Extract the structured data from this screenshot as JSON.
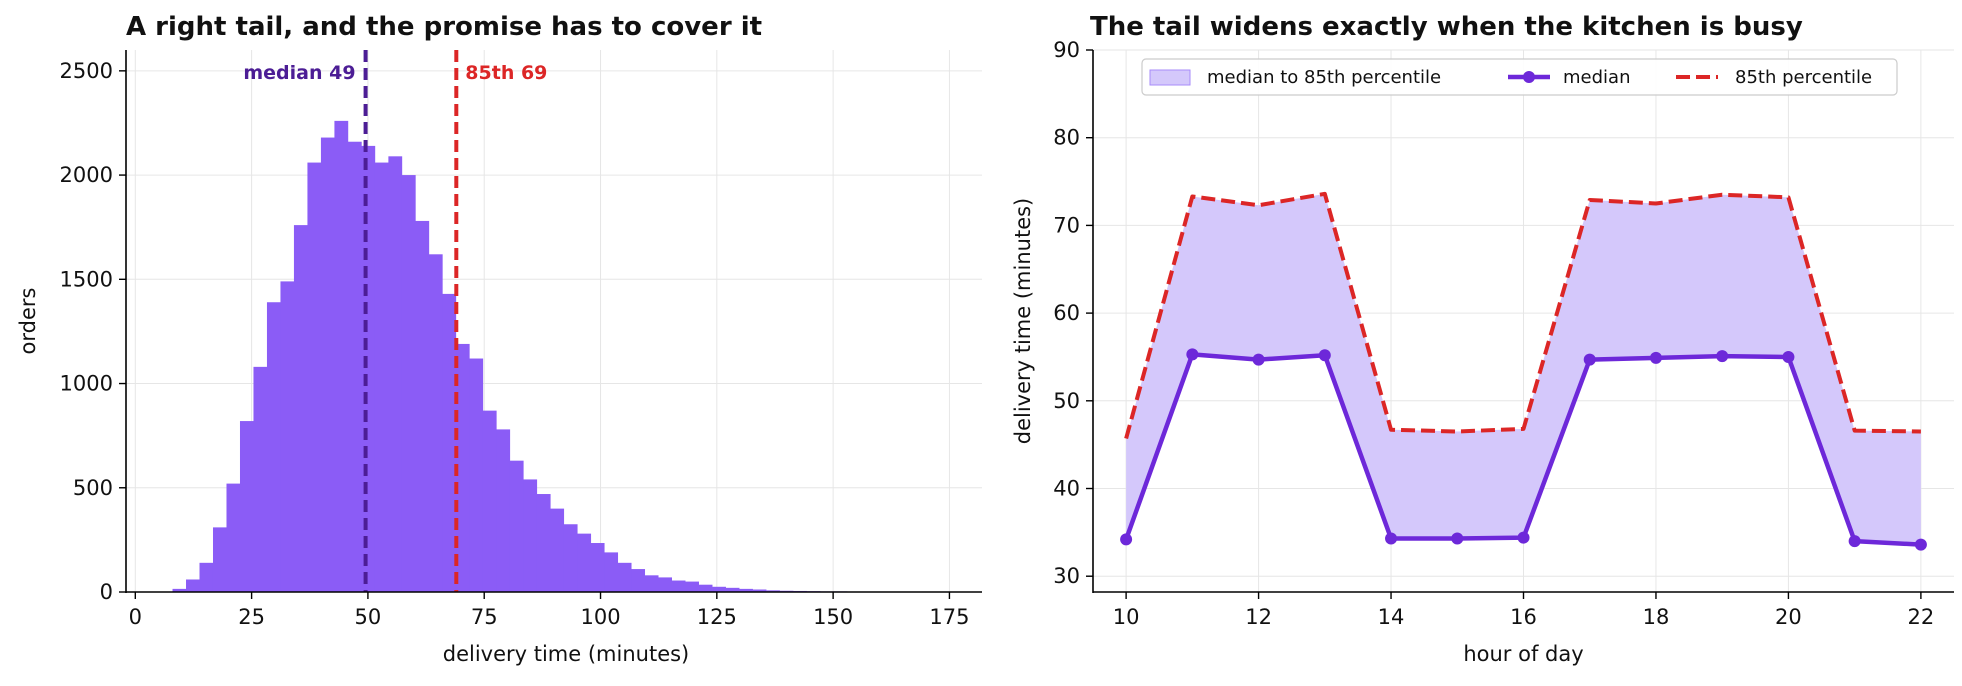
{
  "chart_data": [
    {
      "type": "bar",
      "title": "A right tail, and the promise has to cover it",
      "xlabel": "delivery time (minutes)",
      "ylabel": "orders",
      "xlim": [
        -2,
        182
      ],
      "ylim": [
        0,
        2600
      ],
      "x_ticks": [
        "0",
        "25",
        "50",
        "75",
        "100",
        "125",
        "150",
        "175"
      ],
      "y_ticks": [
        "0",
        "500",
        "1000",
        "1500",
        "2000",
        "2500"
      ],
      "grid": true,
      "bar_color": "#8b5cf6",
      "bin_width": 2.9,
      "bin_start": 8.0,
      "values": [
        15,
        60,
        140,
        310,
        520,
        820,
        1080,
        1390,
        1490,
        1760,
        2060,
        2180,
        2260,
        2160,
        2140,
        2060,
        2090,
        2000,
        1780,
        1620,
        1430,
        1190,
        1120,
        870,
        780,
        630,
        540,
        470,
        400,
        325,
        280,
        235,
        190,
        140,
        110,
        80,
        70,
        55,
        50,
        35,
        25,
        20,
        15,
        12,
        8,
        6,
        5,
        4,
        3,
        3,
        2,
        2,
        2,
        1,
        1,
        1,
        1,
        1
      ],
      "annotations": [
        {
          "label": "median 49",
          "x": 49.5,
          "color": "#4c1d95"
        },
        {
          "label": "85th 69",
          "x": 69.0,
          "color": "#dc2626"
        }
      ]
    },
    {
      "type": "line",
      "title": "The tail widens exactly when the kitchen is busy",
      "xlabel": "hour of day",
      "ylabel": "delivery time (minutes)",
      "xlim": [
        9.5,
        22.5
      ],
      "ylim": [
        28.2,
        90
      ],
      "x_ticks": [
        "10",
        "12",
        "14",
        "16",
        "18",
        "20",
        "22"
      ],
      "y_ticks": [
        "30",
        "40",
        "50",
        "60",
        "70",
        "80",
        "90"
      ],
      "grid": true,
      "legend_position": "top",
      "x": [
        10,
        11,
        12,
        13,
        14,
        15,
        16,
        17,
        18,
        19,
        20,
        21,
        22
      ],
      "series": [
        {
          "name": "median",
          "color": "#6d28d9",
          "values": [
            34.2,
            55.3,
            54.7,
            55.2,
            34.3,
            34.3,
            34.4,
            54.7,
            54.9,
            55.1,
            55.0,
            34.0,
            33.6
          ]
        },
        {
          "name": "85th percentile",
          "color": "#dc2626",
          "values": [
            45.7,
            73.3,
            72.3,
            73.6,
            46.7,
            46.5,
            46.8,
            72.9,
            72.5,
            73.5,
            73.2,
            46.6,
            46.5
          ]
        }
      ],
      "band_label": "median to 85th percentile",
      "band_color": "#d4c8fb"
    }
  ]
}
